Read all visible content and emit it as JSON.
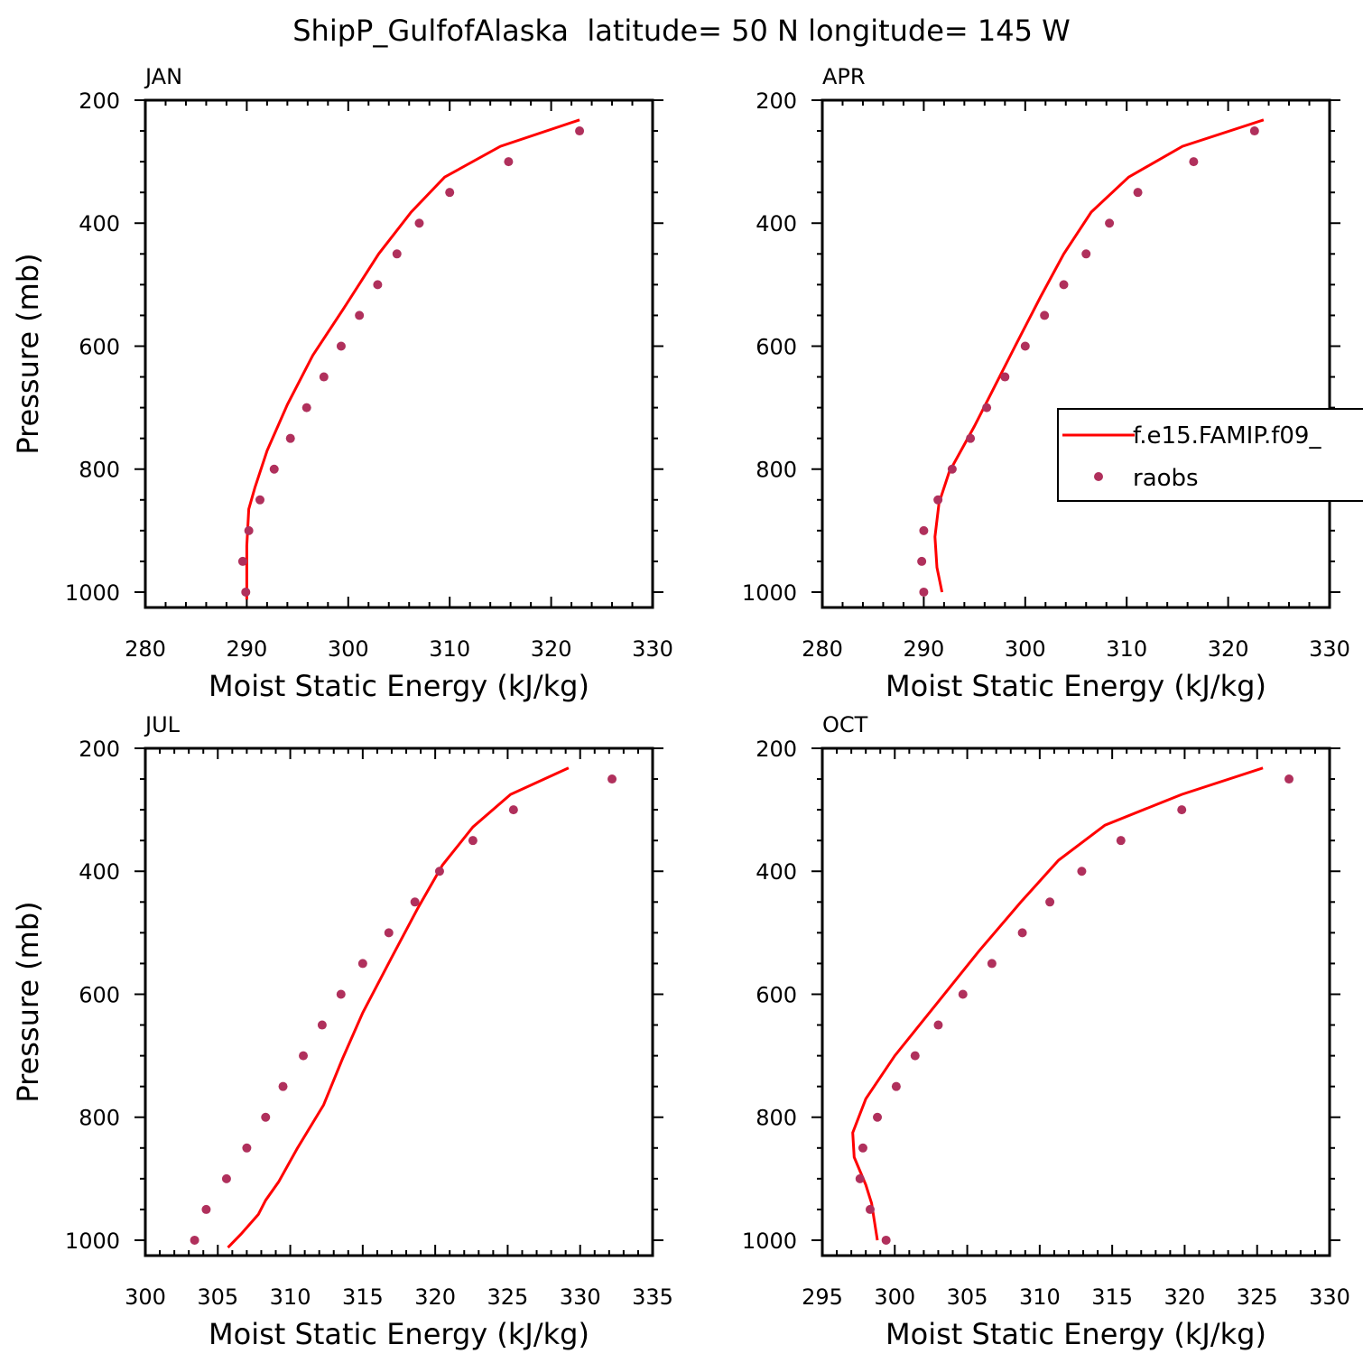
{
  "title": "ShipP_GulfofAlaska  latitude= 50 N longitude= 145 W",
  "colors": {
    "model_line": "#ff0000",
    "obs_marker": "#b0305c",
    "axes": "#000000",
    "background": "#ffffff"
  },
  "legend": {
    "entries": [
      {
        "label": "f.e15.FAMIP.f09_",
        "kind": "line"
      },
      {
        "label": "raobs",
        "kind": "marker"
      }
    ]
  },
  "chart_data": [
    {
      "type": "line",
      "panel": "JAN",
      "xlabel": "Moist Static Energy (kJ/kg)",
      "ylabel": "Pressure (mb)",
      "xlim": [
        280,
        330
      ],
      "xticks": [
        280,
        290,
        300,
        310,
        320,
        330
      ],
      "ylim": [
        200,
        1025
      ],
      "yticks": [
        200,
        400,
        600,
        800,
        1000
      ],
      "y_inverted": true,
      "series": [
        {
          "name": "f.e15.FAMIP.f09_",
          "style": "line",
          "x": [
            322.8,
            315.0,
            309.5,
            306.2,
            303.0,
            299.5,
            296.5,
            294.0,
            292.0,
            290.8,
            290.2,
            290.0,
            290.0,
            290.0
          ],
          "y": [
            232,
            275,
            325,
            382,
            450,
            540,
            615,
            695,
            770,
            830,
            865,
            925,
            970,
            1012
          ]
        },
        {
          "name": "raobs",
          "style": "marker",
          "x": [
            322.8,
            315.8,
            310.0,
            307.0,
            304.8,
            302.9,
            301.1,
            299.3,
            297.6,
            295.9,
            294.3,
            292.7,
            291.3,
            290.2,
            289.6,
            289.9
          ],
          "y": [
            250,
            300,
            350,
            400,
            450,
            500,
            550,
            600,
            650,
            700,
            750,
            800,
            850,
            900,
            950,
            1000
          ]
        }
      ]
    },
    {
      "type": "line",
      "panel": "APR",
      "xlabel": "Moist Static Energy (kJ/kg)",
      "ylabel": "",
      "xlim": [
        280,
        330
      ],
      "xticks": [
        280,
        290,
        300,
        310,
        320,
        330
      ],
      "ylim": [
        200,
        1025
      ],
      "yticks": [
        200,
        400,
        600,
        800,
        1000
      ],
      "y_inverted": true,
      "series": [
        {
          "name": "f.e15.FAMIP.f09_",
          "style": "line",
          "x": [
            323.5,
            315.5,
            310.2,
            306.5,
            303.8,
            301.5,
            299.0,
            297.0,
            295.0,
            292.5,
            291.5,
            291.1,
            291.3,
            291.8
          ],
          "y": [
            232,
            275,
            325,
            382,
            450,
            520,
            600,
            665,
            730,
            805,
            855,
            910,
            960,
            1000
          ]
        },
        {
          "name": "raobs",
          "style": "marker",
          "x": [
            322.6,
            316.6,
            311.1,
            308.3,
            306.0,
            303.8,
            301.9,
            300.0,
            298.0,
            296.2,
            294.6,
            292.8,
            291.4,
            290.0,
            289.8,
            290.0
          ],
          "y": [
            250,
            300,
            350,
            400,
            450,
            500,
            550,
            600,
            650,
            700,
            750,
            800,
            850,
            900,
            950,
            1000
          ]
        }
      ]
    },
    {
      "type": "line",
      "panel": "JUL",
      "xlabel": "Moist Static Energy (kJ/kg)",
      "ylabel": "Pressure (mb)",
      "xlim": [
        300,
        335
      ],
      "xticks": [
        300,
        305,
        310,
        315,
        320,
        325,
        330,
        335
      ],
      "ylim": [
        200,
        1025
      ],
      "yticks": [
        200,
        400,
        600,
        800,
        1000
      ],
      "y_inverted": true,
      "series": [
        {
          "name": "f.e15.FAMIP.f09_",
          "style": "line",
          "x": [
            329.2,
            325.2,
            322.6,
            320.5,
            318.8,
            317.0,
            315.0,
            313.6,
            312.3,
            310.5,
            309.2,
            308.3,
            307.8,
            306.6,
            305.7
          ],
          "y": [
            232,
            275,
            328,
            390,
            460,
            540,
            630,
            705,
            780,
            850,
            905,
            935,
            958,
            990,
            1012
          ]
        },
        {
          "name": "raobs",
          "style": "marker",
          "x": [
            332.2,
            325.4,
            322.6,
            320.3,
            318.6,
            316.8,
            315.0,
            313.5,
            312.2,
            310.9,
            309.5,
            308.3,
            307.0,
            305.6,
            304.2,
            303.4
          ],
          "y": [
            250,
            300,
            350,
            400,
            450,
            500,
            550,
            600,
            650,
            700,
            750,
            800,
            850,
            900,
            950,
            1000
          ]
        }
      ]
    },
    {
      "type": "line",
      "panel": "OCT",
      "xlabel": "Moist Static Energy (kJ/kg)",
      "ylabel": "",
      "xlim": [
        295,
        330
      ],
      "xticks": [
        295,
        300,
        305,
        310,
        315,
        320,
        325,
        330
      ],
      "ylim": [
        200,
        1025
      ],
      "yticks": [
        200,
        400,
        600,
        800,
        1000
      ],
      "y_inverted": true,
      "series": [
        {
          "name": "f.e15.FAMIP.f09_",
          "style": "line",
          "x": [
            325.4,
            319.8,
            314.5,
            311.3,
            308.7,
            305.8,
            302.9,
            300.0,
            298.0,
            297.1,
            297.2,
            298.0,
            298.4,
            298.6,
            298.8
          ],
          "y": [
            232,
            275,
            325,
            382,
            450,
            530,
            615,
            700,
            770,
            825,
            865,
            910,
            940,
            970,
            1000
          ]
        },
        {
          "name": "raobs",
          "style": "marker",
          "x": [
            327.2,
            319.8,
            315.6,
            312.9,
            310.7,
            308.8,
            306.7,
            304.7,
            303.0,
            301.4,
            300.1,
            298.8,
            297.8,
            297.6,
            298.3,
            299.4
          ],
          "y": [
            250,
            300,
            350,
            400,
            450,
            500,
            550,
            600,
            650,
            700,
            750,
            800,
            850,
            900,
            950,
            1000
          ]
        }
      ]
    }
  ]
}
